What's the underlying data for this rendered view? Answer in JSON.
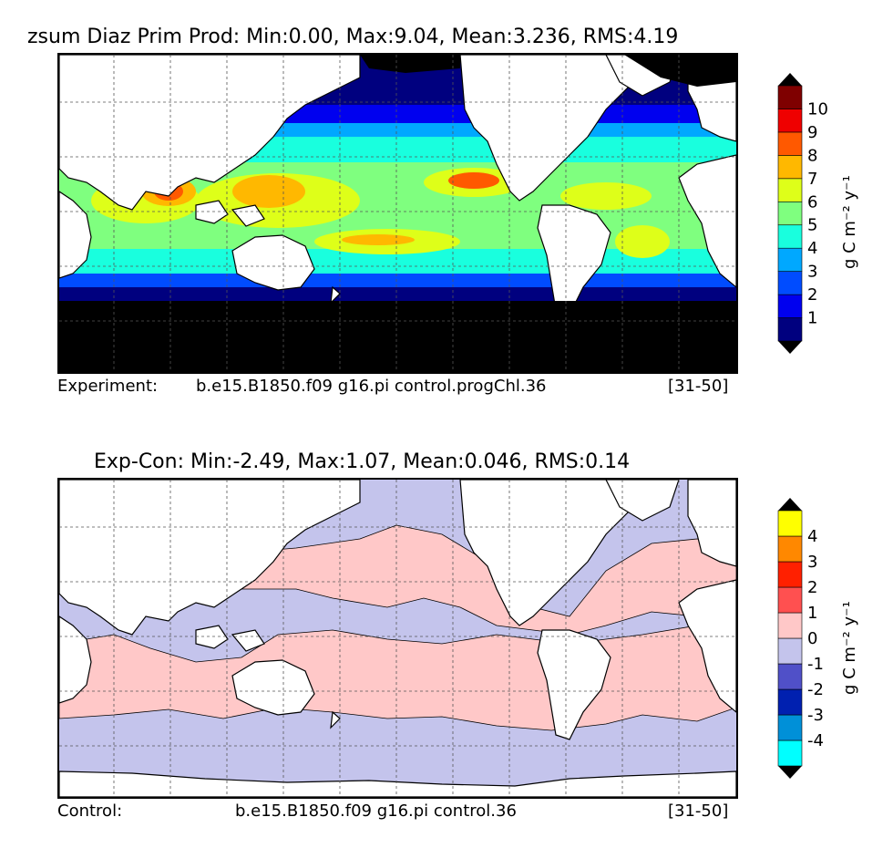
{
  "top": {
    "title": "zsum Diaz Prim Prod: Min:0.00, Max:9.04, Mean:3.236, RMS:4.19",
    "footer_left": "Experiment:",
    "footer_case": "b.e15.B1850.f09 g16.pi control.progChl.36",
    "footer_years": "[31-50]",
    "colorbar": {
      "units": "g C m⁻² y⁻¹",
      "ticks": [
        "1",
        "2",
        "3",
        "4",
        "5",
        "6",
        "7",
        "8",
        "9",
        "10"
      ],
      "colors": [
        "#00007f",
        "#0000ef",
        "#004cff",
        "#00a8ff",
        "#19ffde",
        "#7fff7f",
        "#deff19",
        "#ffb800",
        "#ff5900",
        "#ef0000",
        "#7f0000"
      ],
      "land_color": "#ffffff",
      "ice_color": "#000000"
    }
  },
  "bottom": {
    "title": "Exp-Con: Min:-2.49, Max:1.07, Mean:0.046, RMS:0.14",
    "footer_left": "Control:",
    "footer_case": "b.e15.B1850.f09 g16.pi control.36",
    "footer_years": "[31-50]",
    "colorbar": {
      "units": "g C m⁻² y⁻¹",
      "ticks": [
        "-4",
        "-3",
        "-2",
        "-1",
        "0",
        "1",
        "2",
        "3",
        "4"
      ],
      "colors": [
        "#00ffff",
        "#0090d8",
        "#0020b0",
        "#5050c8",
        "#c4c4ec",
        "#ffc8c8",
        "#ff5050",
        "#ff2000",
        "#ff8800",
        "#ffff00"
      ],
      "land_color": "#ffffff"
    }
  }
}
